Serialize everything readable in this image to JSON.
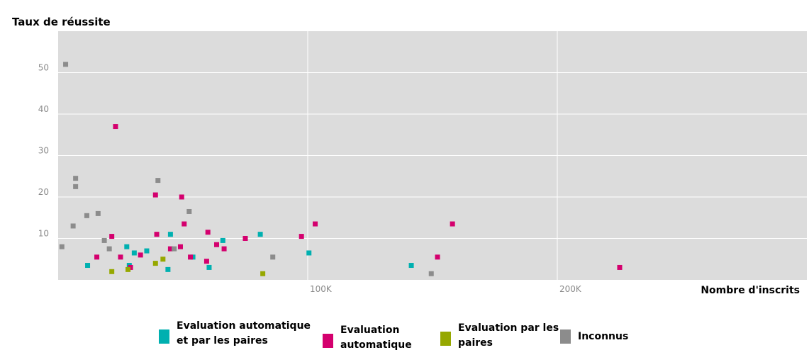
{
  "chart_data": {
    "type": "scatter",
    "ylabel": "Taux de réussite",
    "xlabel": "Nombre d'inscrits",
    "xlim": [
      0,
      300000
    ],
    "ylim": [
      0,
      60
    ],
    "xticks": [
      {
        "value": 100000,
        "label": "100K"
      },
      {
        "value": 200000,
        "label": "200K"
      }
    ],
    "yticks": [
      {
        "value": 10,
        "label": "10"
      },
      {
        "value": 20,
        "label": "20"
      },
      {
        "value": 30,
        "label": "30"
      },
      {
        "value": 40,
        "label": "40"
      },
      {
        "value": 50,
        "label": "50"
      }
    ],
    "grid": true,
    "legend_position": "bottom",
    "series": [
      {
        "name": "Evaluation automatique et par les paires",
        "color": "#00b0b0",
        "points": [
          {
            "x": 11800,
            "y": 3.5
          },
          {
            "x": 27500,
            "y": 8
          },
          {
            "x": 28500,
            "y": 3.5
          },
          {
            "x": 30500,
            "y": 6.5
          },
          {
            "x": 35500,
            "y": 7
          },
          {
            "x": 44000,
            "y": 2.5
          },
          {
            "x": 45000,
            "y": 11
          },
          {
            "x": 54000,
            "y": 5.5
          },
          {
            "x": 60500,
            "y": 3
          },
          {
            "x": 66000,
            "y": 9.5
          },
          {
            "x": 81000,
            "y": 11
          },
          {
            "x": 100500,
            "y": 6.5
          },
          {
            "x": 141500,
            "y": 3.5
          }
        ]
      },
      {
        "name": "Evaluation automatique",
        "color": "#d4006e",
        "points": [
          {
            "x": 15500,
            "y": 5.5
          },
          {
            "x": 21500,
            "y": 10.5
          },
          {
            "x": 23000,
            "y": 37
          },
          {
            "x": 25000,
            "y": 5.5
          },
          {
            "x": 29000,
            "y": 3
          },
          {
            "x": 33000,
            "y": 6
          },
          {
            "x": 39000,
            "y": 20.5
          },
          {
            "x": 39500,
            "y": 11
          },
          {
            "x": 45000,
            "y": 7.5
          },
          {
            "x": 49000,
            "y": 8
          },
          {
            "x": 49500,
            "y": 20
          },
          {
            "x": 50500,
            "y": 13.5
          },
          {
            "x": 53000,
            "y": 5.5
          },
          {
            "x": 59500,
            "y": 4.5
          },
          {
            "x": 60000,
            "y": 11.5
          },
          {
            "x": 63500,
            "y": 8.5
          },
          {
            "x": 66500,
            "y": 7.5
          },
          {
            "x": 75000,
            "y": 10
          },
          {
            "x": 97500,
            "y": 10.5
          },
          {
            "x": 103000,
            "y": 13.5
          },
          {
            "x": 152000,
            "y": 5.5
          },
          {
            "x": 158000,
            "y": 13.5
          },
          {
            "x": 225000,
            "y": 3
          }
        ]
      },
      {
        "name": "Evaluation par les paires",
        "color": "#96a800",
        "points": [
          {
            "x": 21500,
            "y": 2
          },
          {
            "x": 28000,
            "y": 2.5
          },
          {
            "x": 39000,
            "y": 4
          },
          {
            "x": 42000,
            "y": 5
          },
          {
            "x": 82000,
            "y": 1.5
          }
        ]
      },
      {
        "name": "Inconnus",
        "color": "#8c8c8c",
        "points": [
          {
            "x": 1500,
            "y": 8
          },
          {
            "x": 3000,
            "y": 52
          },
          {
            "x": 6000,
            "y": 13
          },
          {
            "x": 7000,
            "y": 24.5
          },
          {
            "x": 7000,
            "y": 22.5
          },
          {
            "x": 11500,
            "y": 15.5
          },
          {
            "x": 16000,
            "y": 16
          },
          {
            "x": 18500,
            "y": 9.5
          },
          {
            "x": 20500,
            "y": 7.5
          },
          {
            "x": 40000,
            "y": 24
          },
          {
            "x": 46500,
            "y": 7.5
          },
          {
            "x": 52500,
            "y": 16.5
          },
          {
            "x": 86000,
            "y": 5.5
          },
          {
            "x": 149500,
            "y": 1.5
          }
        ]
      }
    ]
  },
  "legend": [
    {
      "lines": [
        "Evaluation automatique",
        "et par les paires"
      ],
      "color": "#00b0b0"
    },
    {
      "lines": [
        "Evaluation",
        "automatique"
      ],
      "color": "#d4006e"
    },
    {
      "lines": [
        "Evaluation par les",
        "paires"
      ],
      "color": "#96a800"
    },
    {
      "lines": [
        "Inconnus"
      ],
      "color": "#8c8c8c"
    }
  ]
}
